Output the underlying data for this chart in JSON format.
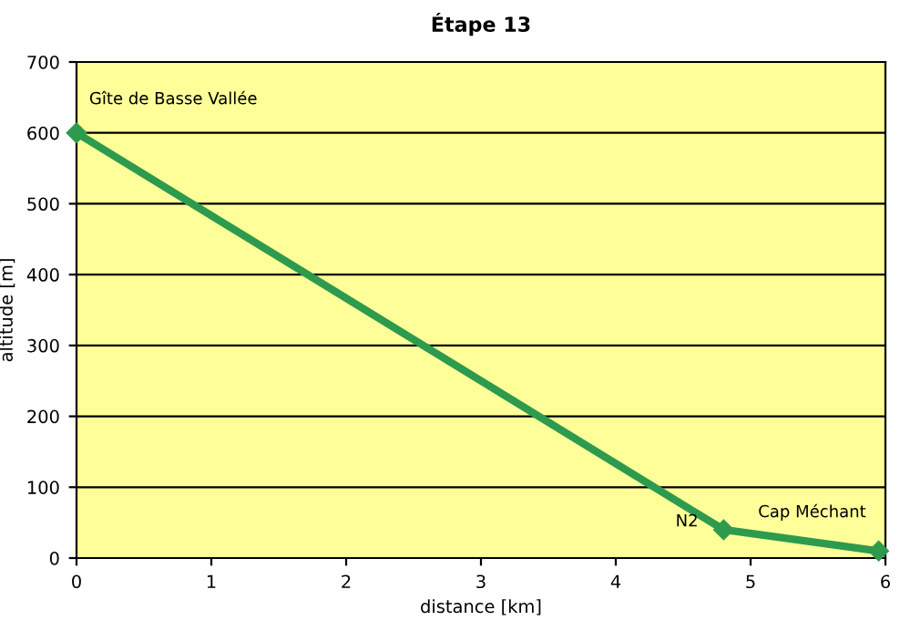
{
  "chart_data": {
    "type": "line",
    "title": "Étape 13",
    "xlabel": "distance [km]",
    "ylabel": "altitude [m]",
    "x": [
      0,
      4.8,
      5.95
    ],
    "series": [
      {
        "color": "#2e9a4e",
        "values": [
          600,
          40,
          10
        ]
      }
    ],
    "xlim": [
      0,
      6
    ],
    "xticks": [
      0,
      1,
      2,
      3,
      4,
      5,
      6
    ],
    "ylim": [
      0,
      700
    ],
    "yticks": [
      0,
      100,
      200,
      300,
      400,
      500,
      600,
      700
    ],
    "grid": "y",
    "marker": "diamond",
    "line_style": "solid",
    "legend": false,
    "annotations": [
      {
        "text": "Gîte de Basse Vallée",
        "x": 0,
        "y": 600
      },
      {
        "text": "N2",
        "x": 4.8,
        "y": 40
      },
      {
        "text": "Cap Méchant",
        "x": 5.95,
        "y": 10
      }
    ]
  }
}
